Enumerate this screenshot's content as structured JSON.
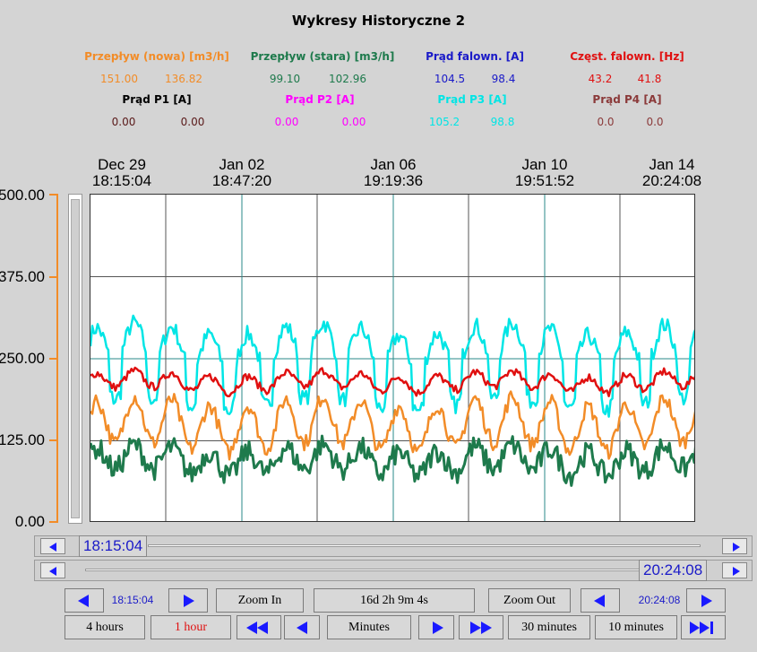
{
  "title": "Wykresy Historyczne 2",
  "legend": [
    {
      "label": "Przepływ (nowa) [m3/h]",
      "color": "#f28c28",
      "v1": "151.00",
      "v2": "136.82"
    },
    {
      "label": "Przepływ (stara) [m3/h]",
      "color": "#1e7a4c",
      "v1": "99.10",
      "v2": "102.96"
    },
    {
      "label": "Prąd falown. [A]",
      "color": "#1a1ac8",
      "v1": "104.5",
      "v2": "98.4"
    },
    {
      "label": "Częst. falown. [Hz]",
      "color": "#e01010",
      "v1": "43.2",
      "v2": "41.8"
    },
    {
      "label": "Prąd P1 [A]",
      "color": "#000000",
      "v1": "0.00",
      "v2": "0.00"
    },
    {
      "label": "Prąd P2 [A]",
      "color": "#ff00ff",
      "v1": "0.00",
      "v2": "0.00"
    },
    {
      "label": "Prąd P3 [A]",
      "color": "#00e5e5",
      "v1": "105.2",
      "v2": "98.8"
    },
    {
      "label": "Prąd P4 [A]",
      "color": "#8b3a3a",
      "v1": "0.0",
      "v2": "0.0"
    }
  ],
  "x_ticks": [
    {
      "date": "Dec 29",
      "time": "18:15:04"
    },
    {
      "date": "Jan 02",
      "time": "18:47:20"
    },
    {
      "date": "Jan 06",
      "time": "19:19:36"
    },
    {
      "date": "Jan 10",
      "time": "19:51:52"
    },
    {
      "date": "Jan 14",
      "time": "20:24:08"
    }
  ],
  "y_ticks": [
    "500.00",
    "375.00",
    "250.00",
    "125.00",
    "0.00"
  ],
  "chart_data": {
    "type": "line",
    "ylim": [
      0,
      500
    ],
    "x_range": [
      "Dec 29 18:15:04",
      "Jan 14 20:24:08"
    ],
    "grid": true,
    "series": [
      {
        "name": "Prąd P3 [A]",
        "color": "#00e5e5",
        "approx_level": 265,
        "approx_range": [
          170,
          315
        ]
      },
      {
        "name": "Częst. falown. [Hz]",
        "color": "#e01010",
        "approx_level": 215,
        "approx_range": [
          185,
          235
        ]
      },
      {
        "name": "Przepływ (nowa) [m3/h]",
        "color": "#f28c28",
        "approx_level": 150,
        "approx_range": [
          100,
          215
        ]
      },
      {
        "name": "Przepływ (stara) [m3/h]",
        "color": "#1e7a4c",
        "approx_level": 95,
        "approx_range": [
          10,
          145
        ]
      }
    ]
  },
  "scroll_start": {
    "time": "18:15:04"
  },
  "scroll_end": {
    "time": "20:24:08"
  },
  "controls": {
    "start_time": "18:15:04",
    "zoom_in": "Zoom In",
    "span": "16d 2h 9m 4s",
    "zoom_out": "Zoom Out",
    "end_time": "20:24:08",
    "btn_4h": "4 hours",
    "btn_1h": "1 hour",
    "minutes": "Minutes",
    "btn_30m": "30 minutes",
    "btn_10m": "10 minutes"
  }
}
